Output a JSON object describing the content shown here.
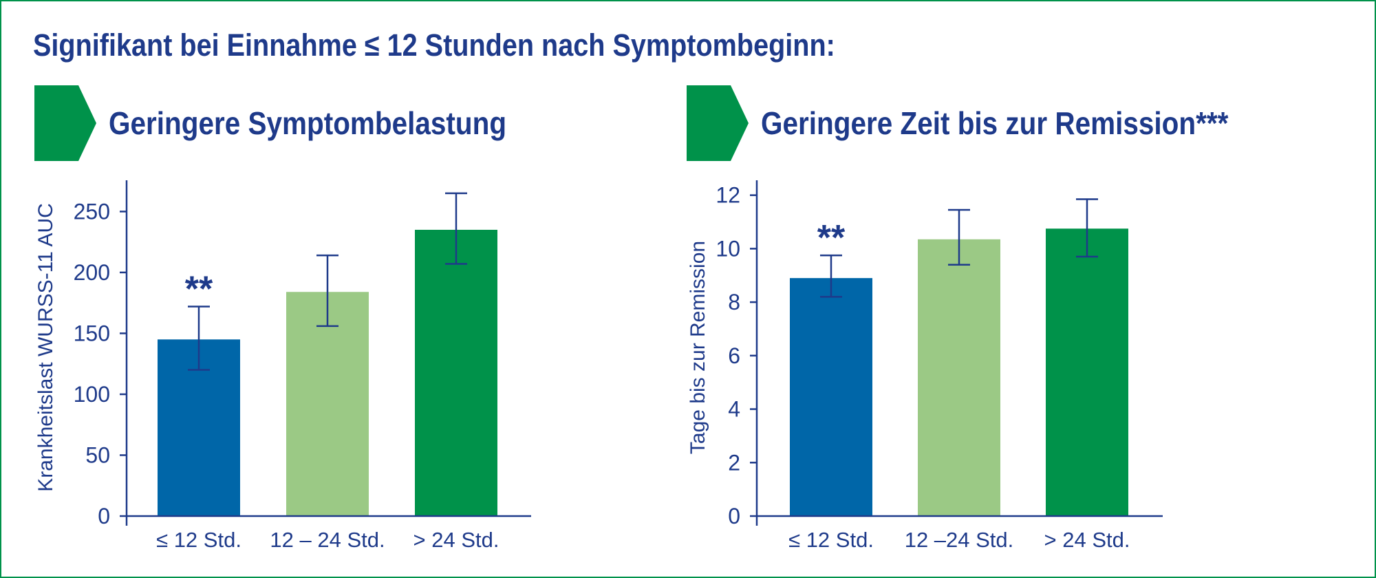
{
  "header": {
    "title": "Signifikant bei Einnahme ≤ 12 Stunden nach Symptombeginn:"
  },
  "colors": {
    "navy": "#1e3a8a",
    "blue_bar": "#0066a8",
    "light_green_bar": "#9bc985",
    "green_bar": "#00924a"
  },
  "panels": [
    {
      "heading": "Geringere Symptombelastung"
    },
    {
      "heading": "Geringere Zeit bis zur Remission***"
    }
  ],
  "chart_data": [
    {
      "type": "bar",
      "title": "Geringere Symptombelastung",
      "categories": [
        "≤ 12 Std.",
        "12 – 24 Std.",
        "> 24 Std."
      ],
      "values": [
        145,
        184,
        235
      ],
      "error_low": [
        120,
        156,
        207
      ],
      "error_high": [
        172,
        214,
        265
      ],
      "bar_colors": [
        "#0066a8",
        "#9bc985",
        "#00924a"
      ],
      "annotations": [
        {
          "category_index": 0,
          "text": "**"
        }
      ],
      "xlabel": "",
      "ylabel": "Krankheitslast WURSS-11 AUC",
      "ylim": [
        0,
        270
      ],
      "yticks": [
        0,
        50,
        100,
        150,
        200,
        250
      ],
      "grid": false,
      "legend": "none"
    },
    {
      "type": "bar",
      "title": "Geringere Zeit bis zur Remission***",
      "categories": [
        "≤ 12 Std.",
        "12 –24 Std.",
        "> 24 Std."
      ],
      "values": [
        8.9,
        10.35,
        10.75
      ],
      "error_low": [
        8.2,
        9.4,
        9.7
      ],
      "error_high": [
        9.75,
        11.45,
        11.85
      ],
      "bar_colors": [
        "#0066a8",
        "#9bc985",
        "#00924a"
      ],
      "annotations": [
        {
          "category_index": 0,
          "text": "**"
        }
      ],
      "xlabel": "",
      "ylabel": "Tage bis zur Remission",
      "ylim": [
        0,
        12.3
      ],
      "yticks": [
        0,
        2,
        4,
        6,
        8,
        10,
        12
      ],
      "grid": false,
      "legend": "none"
    }
  ]
}
